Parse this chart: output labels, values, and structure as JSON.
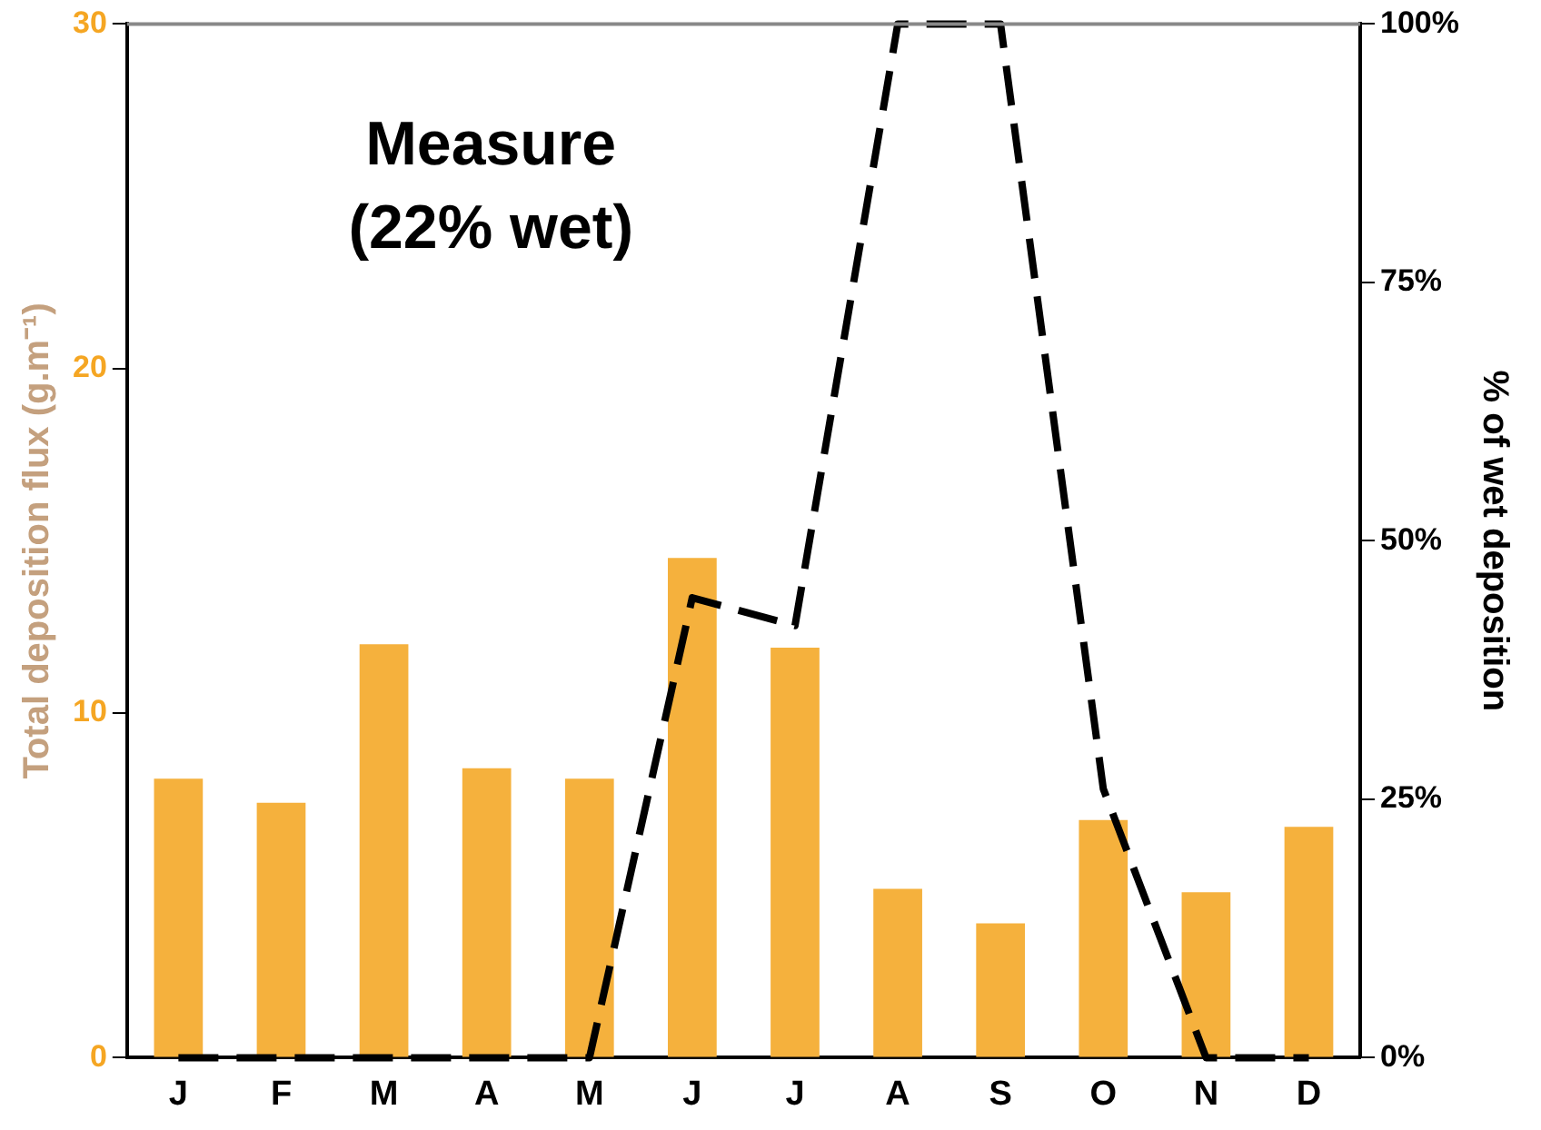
{
  "chart_data": {
    "type": "bar",
    "categories": [
      "J",
      "F",
      "M",
      "A",
      "M",
      "J",
      "J",
      "A",
      "S",
      "O",
      "N",
      "D"
    ],
    "ylabel": "Total deposition flux (g.m⁻¹)",
    "y2label": "% of wet deposition",
    "ylim": [
      0,
      30
    ],
    "yticks": [
      0,
      10,
      20,
      30
    ],
    "y2lim": [
      0,
      100
    ],
    "y2ticks": [
      {
        "value": 0,
        "label": "0%"
      },
      {
        "value": 25,
        "label": "25%"
      },
      {
        "value": 50,
        "label": "50%"
      },
      {
        "value": 75,
        "label": "75%"
      },
      {
        "value": 100,
        "label": "100%"
      }
    ],
    "series": [
      {
        "color": "#f5b13d",
        "values": [
          8.1,
          7.4,
          12.0,
          8.4,
          8.1,
          14.5,
          11.9,
          4.9,
          3.9,
          6.9,
          4.8,
          6.7
        ]
      },
      {
        "type": "line",
        "color": "#000000",
        "axis": "y2",
        "line_style": "dashed",
        "marker": "none",
        "values": [
          0,
          0,
          0,
          0,
          0,
          44.5,
          41.8,
          100,
          100,
          26,
          0,
          0
        ]
      }
    ],
    "annotations": [
      "Measure",
      "(22% wet)"
    ],
    "grid": false,
    "legend": false
  }
}
